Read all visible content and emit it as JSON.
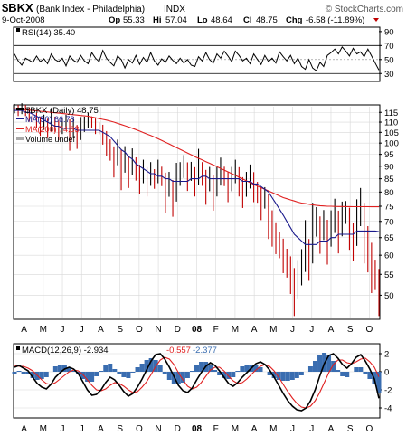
{
  "header": {
    "symbol": "$BKX",
    "name": "(Bank Index - Philadelphia)",
    "exchange": "INDX",
    "watermark": "© StockCharts.com",
    "date": "9-Oct-2008",
    "op_label": "Op",
    "op": "55.33",
    "hi_label": "Hi",
    "hi": "57.04",
    "lo_label": "Lo",
    "lo": "48.64",
    "cl_label": "Cl",
    "cl": "48.75",
    "chg_label": "Chg",
    "chg": "-6.58 (-11.89%)"
  },
  "colors": {
    "price": "#000000",
    "ma50": "#1a1a8c",
    "ma200": "#e02020",
    "macd": "#000000",
    "signal": "#e02020",
    "histogram": "#3a6db0",
    "up": "#000000",
    "down": "#c00000",
    "grid": "#d8d8d8",
    "border": "#000000"
  },
  "chart_data": [
    {
      "type": "line",
      "title": "RSI(14) 35.40",
      "y_ticks": [
        30,
        50,
        70,
        90
      ],
      "ylim": [
        20,
        95
      ],
      "reference_lines": [
        30,
        70
      ],
      "last_value": 35.4,
      "series": [
        {
          "values": [
            58,
            48,
            42,
            52,
            49,
            46,
            55,
            47,
            51,
            44,
            58,
            50,
            47,
            52,
            41,
            55,
            49,
            46,
            56,
            48,
            44,
            60,
            52,
            47,
            63,
            52,
            46,
            41,
            55,
            50,
            38,
            50,
            45,
            56,
            43,
            53,
            46,
            60,
            48,
            42,
            51,
            46,
            55,
            49,
            44,
            52,
            45,
            50,
            42,
            40,
            54,
            48,
            60,
            50,
            45,
            58,
            52,
            62,
            55,
            47,
            62,
            56,
            48,
            52,
            44,
            58,
            50,
            43,
            56,
            47,
            52,
            45,
            61,
            54,
            48,
            56,
            44,
            52,
            40,
            36,
            50,
            38,
            34,
            46,
            40,
            56,
            60,
            65,
            58,
            68,
            62,
            55,
            66,
            58,
            61,
            54,
            65,
            55,
            45,
            35
          ]
        }
      ]
    },
    {
      "type": "line",
      "title": "$BKX (Daily) 48.75",
      "y_ticks": [
        50,
        55,
        60,
        65,
        70,
        75,
        80,
        85,
        90,
        95,
        100,
        105,
        110,
        115
      ],
      "ylim": [
        45,
        118
      ],
      "y_scale": "log",
      "x_ticks": [
        "A",
        "M",
        "J",
        "J",
        "A",
        "S",
        "O",
        "N",
        "D",
        "08",
        "F",
        "M",
        "A",
        "M",
        "J",
        "J",
        "A",
        "S",
        "O"
      ],
      "legend": [
        "$BKX (Daily) 48.75",
        "MA(50) 66.78",
        "MA(200) 74.83",
        "Volume undef"
      ],
      "series": [
        {
          "name": "$BKX (Daily) 48.75",
          "values": [
            117,
            116,
            117,
            116,
            114,
            113,
            111,
            108,
            110,
            107,
            111,
            109,
            106,
            108,
            110,
            104,
            107,
            103,
            107,
            109,
            111,
            110,
            108,
            107,
            104,
            100,
            97,
            92,
            96,
            89,
            93,
            88,
            92,
            89,
            85,
            88,
            84,
            87,
            85,
            88,
            86,
            80,
            83,
            78,
            84,
            87,
            90,
            86,
            88,
            84,
            90,
            87,
            82,
            85,
            80,
            84,
            88,
            86,
            82,
            85,
            88,
            84,
            80,
            83,
            86,
            82,
            80,
            76,
            78,
            72,
            68,
            65,
            63,
            60,
            58,
            55,
            51,
            54,
            57,
            63,
            59,
            67,
            70,
            66,
            69,
            64,
            68,
            72,
            67,
            71,
            73,
            68,
            64,
            70,
            75,
            67,
            62,
            57,
            55,
            48.75
          ]
        },
        {
          "name": "MA(50) 66.78",
          "values": [
            116,
            116,
            116,
            115,
            115,
            114,
            113,
            112,
            111,
            110,
            109,
            108,
            108,
            107,
            107,
            107,
            107,
            106,
            106,
            106,
            106,
            106,
            106,
            106,
            105,
            104,
            103,
            101,
            99,
            97,
            96,
            94,
            93,
            91,
            90,
            89,
            88,
            87,
            87,
            86,
            86,
            85,
            85,
            84,
            84,
            84,
            84,
            84,
            85,
            85,
            85,
            86,
            86,
            85,
            85,
            85,
            85,
            85,
            85,
            85,
            85,
            85,
            84,
            84,
            84,
            83,
            83,
            82,
            81,
            80,
            78,
            76,
            74,
            72,
            70,
            68,
            66,
            65,
            64,
            63,
            63,
            63,
            63,
            64,
            64,
            64,
            65,
            65,
            66,
            66,
            66,
            66,
            66,
            67,
            67,
            67,
            67,
            67,
            67,
            66.78
          ]
        },
        {
          "name": "MA(200) 74.83",
          "values": [
            117,
            116.8,
            116.6,
            116.4,
            116.2,
            116,
            115.8,
            115.6,
            115.4,
            115.2,
            115,
            114.8,
            114.6,
            114.4,
            114.2,
            114,
            113.8,
            113.6,
            113.4,
            113.2,
            113,
            112.6,
            112.2,
            111.8,
            111.4,
            111,
            110.5,
            110,
            109.4,
            108.8,
            108.2,
            107.6,
            107,
            106.3,
            105.6,
            104.9,
            104.2,
            103.5,
            102.8,
            102,
            101.2,
            100.4,
            99.6,
            98.8,
            98,
            97.2,
            96.4,
            95.6,
            94.8,
            94,
            93.3,
            92.6,
            91.9,
            91.2,
            90.5,
            89.8,
            89.1,
            88.4,
            87.7,
            87,
            86.3,
            85.6,
            84.9,
            84.2,
            83.5,
            82.8,
            82.2,
            81.6,
            81,
            80.4,
            79.8,
            79.2,
            78.6,
            78,
            77.6,
            77.2,
            76.8,
            76.4,
            76.1,
            75.9,
            75.7,
            75.5,
            75.3,
            75.2,
            75.1,
            75,
            75,
            74.95,
            74.9,
            74.9,
            74.88,
            74.87,
            74.86,
            74.85,
            74.85,
            74.84,
            74.84,
            74.83,
            74.83,
            74.83
          ]
        }
      ]
    },
    {
      "type": "line",
      "title": "MACD(12,26,9) -2.934, -0.557, -2.377",
      "legend": [
        "MACD(12,26,9) -2.934",
        "-0.557",
        "-2.377"
      ],
      "y_ticks": [
        -4,
        -2,
        0,
        2
      ],
      "ylim": [
        -5,
        3
      ],
      "x_ticks": [
        "A",
        "M",
        "J",
        "J",
        "A",
        "S",
        "O",
        "N",
        "D",
        "08",
        "F",
        "M",
        "A",
        "M",
        "J",
        "J",
        "A",
        "S",
        "O"
      ],
      "series": [
        {
          "name": "MACD(12,26,9) -2.934",
          "values": [
            0.5,
            0.7,
            0.4,
            0.1,
            -0.6,
            -1.3,
            -1.7,
            -1.9,
            -1.4,
            -0.6,
            -0.1,
            0.3,
            0.5,
            0.3,
            -0.2,
            -1.1,
            -2.0,
            -2.6,
            -2.5,
            -2.0,
            -1.2,
            -0.6,
            -0.9,
            -1.5,
            -2.2,
            -2.7,
            -2.4,
            -1.7,
            -0.8,
            0.2,
            1.2,
            1.9,
            2.0,
            1.4,
            0.5,
            -0.5,
            -1.5,
            -2.1,
            -2.3,
            -1.8,
            -0.9,
            -0.1,
            0.6,
            1.0,
            0.7,
            0.1,
            -0.6,
            -1.3,
            -1.6,
            -1.2,
            -0.6,
            -0.1,
            0.4,
            0.9,
            1.1,
            0.8,
            0.2,
            -0.6,
            -1.5,
            -2.4,
            -3.2,
            -3.8,
            -4.2,
            -4.3,
            -4.0,
            -3.2,
            -2.0,
            -0.5,
            0.9,
            1.8,
            2.0,
            1.5,
            0.8,
            0.4,
            0.9,
            1.6,
            1.9,
            1.2,
            0.3,
            -0.8,
            -2.934
          ]
        },
        {
          "name": "-0.557",
          "values": [
            0.7,
            0.6,
            0.6,
            0.4,
            0.1,
            -0.4,
            -0.9,
            -1.3,
            -1.4,
            -1.2,
            -0.8,
            -0.4,
            0.0,
            0.2,
            0.1,
            -0.3,
            -0.9,
            -1.5,
            -2.0,
            -2.1,
            -1.9,
            -1.5,
            -1.2,
            -1.3,
            -1.6,
            -2.0,
            -2.3,
            -2.2,
            -1.7,
            -1.1,
            -0.3,
            0.6,
            1.3,
            1.6,
            1.4,
            0.8,
            -0.1,
            -0.9,
            -1.6,
            -1.9,
            -1.7,
            -1.2,
            -0.5,
            0.2,
            0.5,
            0.5,
            0.1,
            -0.5,
            -1.0,
            -1.3,
            -1.2,
            -0.8,
            -0.3,
            0.2,
            0.6,
            0.8,
            0.6,
            0.1,
            -0.6,
            -1.4,
            -2.2,
            -2.9,
            -3.5,
            -3.9,
            -4.0,
            -3.8,
            -3.2,
            -2.3,
            -1.2,
            -0.1,
            0.8,
            1.3,
            1.3,
            1.0,
            0.9,
            1.1,
            1.4,
            1.5,
            1.1,
            0.5,
            -0.557
          ]
        }
      ],
      "histogram": [
        -0.2,
        0.1,
        -0.2,
        -0.3,
        -0.7,
        -0.9,
        -0.8,
        -0.6,
        0.0,
        0.6,
        0.7,
        0.7,
        0.5,
        0.1,
        -0.3,
        -0.8,
        -1.1,
        -1.1,
        -0.5,
        0.1,
        0.7,
        0.9,
        0.3,
        -0.2,
        -0.6,
        -0.7,
        -0.1,
        0.5,
        0.9,
        1.3,
        1.5,
        1.3,
        0.7,
        -0.2,
        -0.9,
        -1.3,
        -1.4,
        -1.2,
        -0.7,
        0.1,
        0.8,
        1.1,
        1.1,
        0.8,
        0.2,
        -0.4,
        -0.7,
        -0.8,
        -0.6,
        0.1,
        0.6,
        0.7,
        0.7,
        0.7,
        0.5,
        0.0,
        -0.4,
        -0.7,
        -0.9,
        -1.0,
        -1.0,
        -0.9,
        -0.7,
        -0.4,
        0.0,
        0.6,
        1.2,
        1.8,
        2.1,
        1.9,
        1.2,
        0.2,
        -0.5,
        -0.6,
        0.0,
        0.5,
        0.5,
        -0.3,
        -0.8,
        -1.3,
        -2.377
      ]
    }
  ]
}
